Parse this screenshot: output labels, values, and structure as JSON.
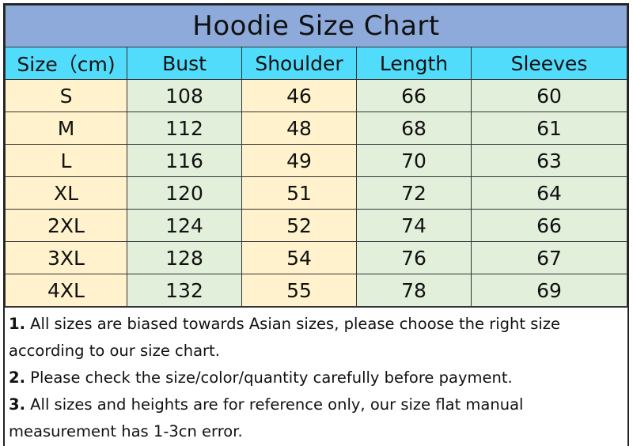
{
  "title": "Hoodie Size Chart",
  "headers": [
    "Size（cm)",
    "Bust",
    "Shoulder",
    "Length",
    "Sleeves"
  ],
  "rows": [
    [
      "S",
      "108",
      "46",
      "66",
      "60"
    ],
    [
      "M",
      "112",
      "48",
      "68",
      "61"
    ],
    [
      "L",
      "116",
      "49",
      "70",
      "63"
    ],
    [
      "XL",
      "120",
      "51",
      "72",
      "64"
    ],
    [
      "2XL",
      "124",
      "52",
      "74",
      "66"
    ],
    [
      "3XL",
      "128",
      "54",
      "76",
      "67"
    ],
    [
      "4XL",
      "132",
      "55",
      "78",
      "69"
    ]
  ],
  "notes": [
    {
      "num": "1.",
      "text": " All sizes are biased towards Asian sizes, please choose the right size according to our size chart."
    },
    {
      "num": "2.",
      "text": " Please check the size/color/quantity carefully before payment."
    },
    {
      "num": "3.",
      "text": " All sizes and heights are for reference only, our size flat manual measurement has 1-3cn error."
    }
  ],
  "colors": {
    "title_bg": "#8eaadb",
    "header_bg": "#52dcfc",
    "size_col_bg": "#fff2cc",
    "shoulder_col_bg": "#fff2cc",
    "other_bg": "#e2efda"
  }
}
